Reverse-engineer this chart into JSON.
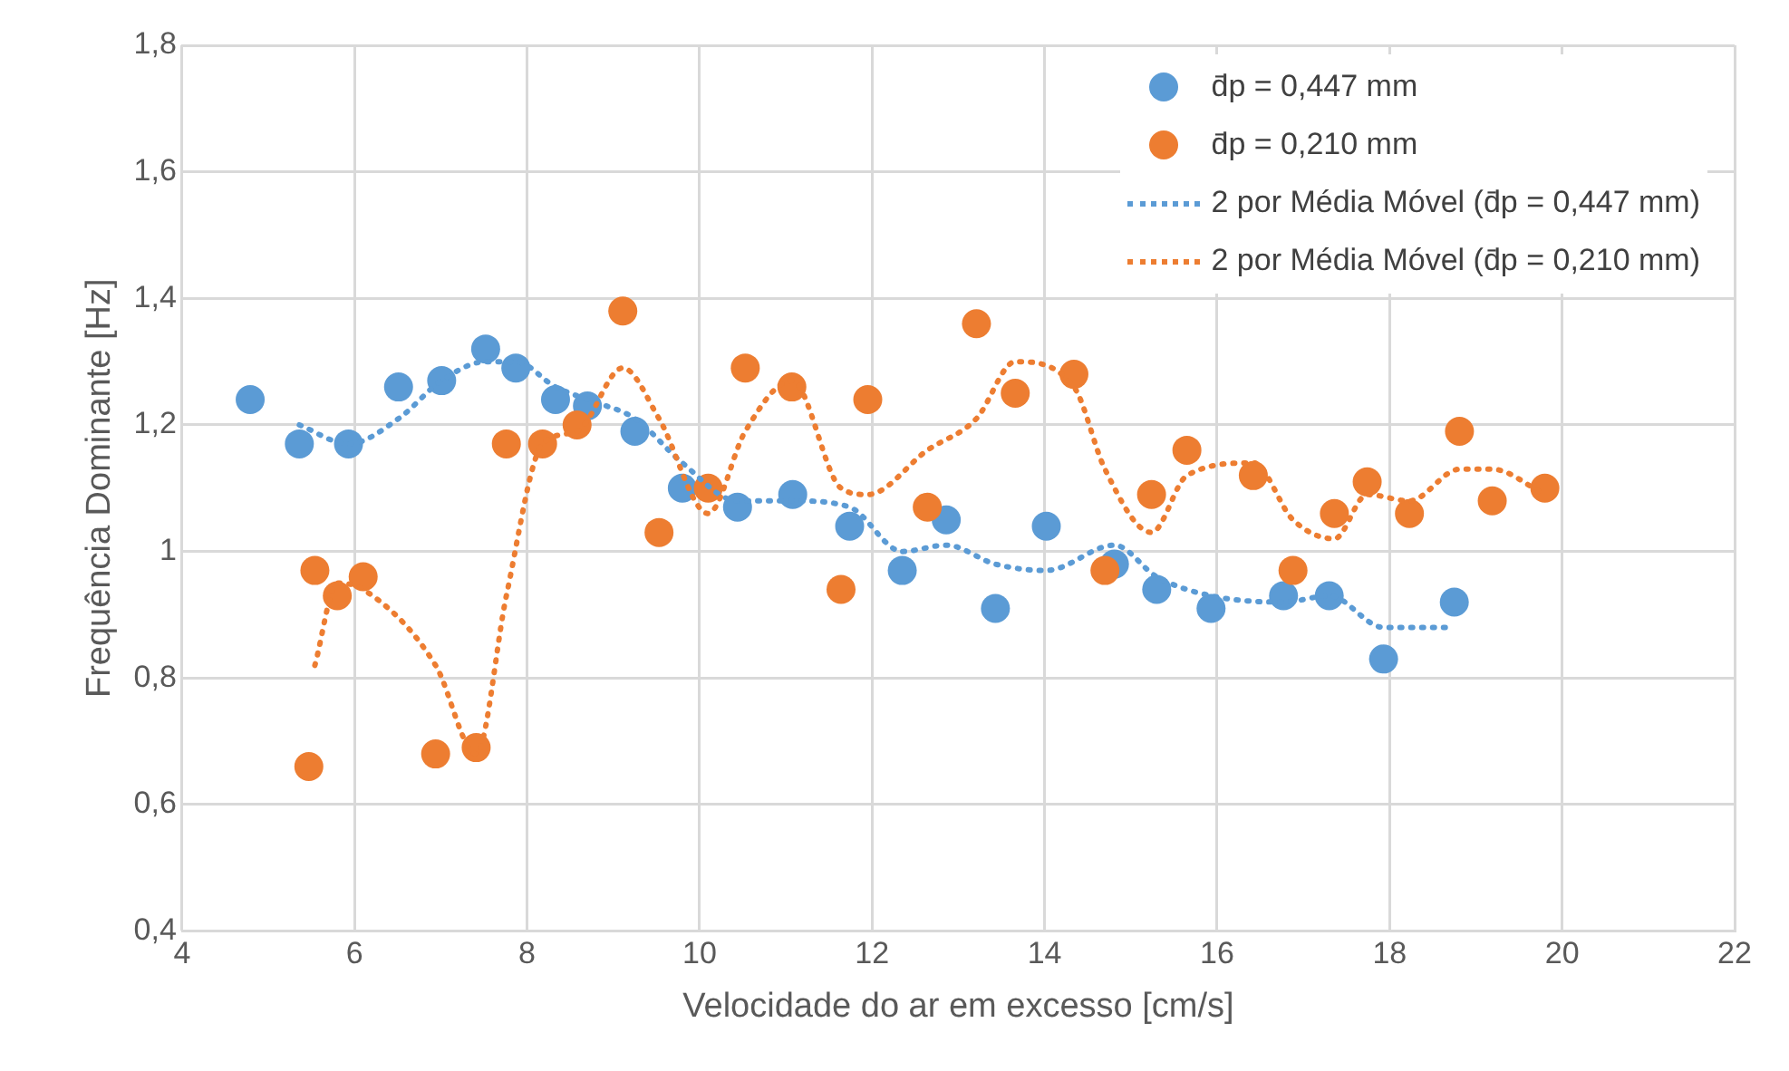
{
  "chart_data": {
    "type": "scatter",
    "xlabel": "Velocidade do ar em excesso [cm/s]",
    "ylabel": "Frequência Dominante [Hz]",
    "xlim": [
      4,
      22
    ],
    "xticks": [
      4,
      6,
      8,
      10,
      12,
      14,
      16,
      18,
      20,
      22
    ],
    "ylim": [
      0.4,
      1.8
    ],
    "yticks": [
      {
        "value": 0.4,
        "label": "0,4"
      },
      {
        "value": 0.6,
        "label": "0,6"
      },
      {
        "value": 0.8,
        "label": "0,8"
      },
      {
        "value": 1,
        "label": "1"
      },
      {
        "value": 1.2,
        "label": "1,2"
      },
      {
        "value": 1.4,
        "label": "1,4"
      },
      {
        "value": 1.6,
        "label": "1,6"
      },
      {
        "value": 1.8,
        "label": "1,8"
      }
    ],
    "grid": true,
    "legend": "top right",
    "marker": "circle",
    "series": [
      {
        "name": "d̄p = 0,447 mm",
        "type": "scatter",
        "color": "#5b9bd5",
        "x": [
          4.79,
          5.36,
          5.93,
          6.51,
          7.01,
          7.52,
          7.87,
          8.33,
          8.7,
          9.25,
          9.8,
          10.44,
          11.08,
          11.74,
          12.35,
          12.86,
          13.43,
          14.02,
          14.81,
          15.3,
          15.93,
          16.77,
          17.3,
          17.93,
          18.75
        ],
        "values": [
          1.24,
          1.17,
          1.17,
          1.26,
          1.27,
          1.32,
          1.29,
          1.24,
          1.23,
          1.19,
          1.1,
          1.07,
          1.09,
          1.04,
          0.97,
          1.05,
          0.91,
          1.04,
          0.98,
          0.94,
          0.91,
          0.93,
          0.93,
          0.83,
          0.92
        ]
      },
      {
        "name": "d̄p = 0,210 mm",
        "type": "scatter",
        "color": "#ed7d31",
        "x": [
          5.47,
          5.54,
          5.8,
          6.1,
          6.94,
          7.41,
          7.76,
          8.18,
          8.58,
          9.11,
          9.53,
          10.1,
          10.53,
          11.07,
          11.64,
          11.95,
          12.64,
          13.21,
          13.66,
          14.34,
          14.7,
          15.24,
          15.65,
          16.42,
          16.88,
          17.36,
          17.74,
          18.23,
          18.81,
          19.19,
          19.8
        ],
        "values": [
          0.66,
          0.97,
          0.93,
          0.96,
          0.68,
          0.69,
          1.17,
          1.17,
          1.2,
          1.38,
          1.03,
          1.1,
          1.29,
          1.26,
          0.94,
          1.24,
          1.07,
          1.36,
          1.25,
          1.28,
          0.97,
          1.09,
          1.16,
          1.12,
          0.97,
          1.06,
          1.11,
          1.06,
          1.19,
          1.08,
          1.1
        ]
      },
      {
        "name": "2 por Média Móvel (d̄p = 0,447 mm)",
        "type": "line",
        "color": "#5b9bd5",
        "line_style": "dotted",
        "marker": "none",
        "x": [
          5.36,
          5.93,
          6.51,
          7.01,
          7.52,
          7.87,
          8.33,
          8.7,
          9.25,
          9.8,
          10.44,
          11.08,
          11.74,
          12.35,
          12.86,
          13.43,
          14.02,
          14.81,
          15.3,
          15.93,
          16.77,
          17.3,
          17.93,
          18.75
        ],
        "values": [
          1.2,
          1.17,
          1.21,
          1.27,
          1.3,
          1.3,
          1.26,
          1.24,
          1.21,
          1.14,
          1.08,
          1.08,
          1.07,
          1,
          1.01,
          0.98,
          0.97,
          1.01,
          0.96,
          0.93,
          0.92,
          0.93,
          0.88,
          0.88
        ]
      },
      {
        "name": "2 por Média Móvel (d̄p = 0,210 mm)",
        "type": "line",
        "color": "#ed7d31",
        "line_style": "dotted",
        "marker": "none",
        "x": [
          5.54,
          5.8,
          6.1,
          6.94,
          7.41,
          7.76,
          8.18,
          8.58,
          9.11,
          9.53,
          10.1,
          10.53,
          11.07,
          11.64,
          11.95,
          12.64,
          13.21,
          13.66,
          14.34,
          14.7,
          15.24,
          15.65,
          16.42,
          16.88,
          17.36,
          17.74,
          18.23,
          18.81,
          19.19,
          19.8
        ],
        "values": [
          0.82,
          0.95,
          0.94,
          0.82,
          0.68,
          0.93,
          1.17,
          1.19,
          1.29,
          1.21,
          1.06,
          1.19,
          1.27,
          1.1,
          1.09,
          1.16,
          1.21,
          1.3,
          1.26,
          1.13,
          1.03,
          1.12,
          1.14,
          1.05,
          1.02,
          1.09,
          1.08,
          1.13,
          1.13,
          1.09
        ]
      }
    ]
  }
}
